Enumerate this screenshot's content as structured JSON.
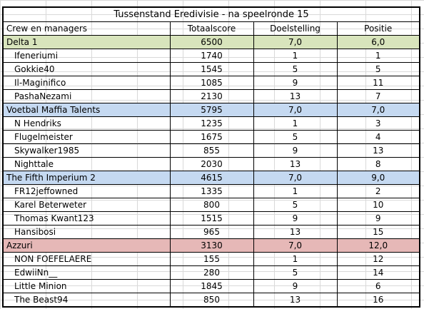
{
  "title": "Tussenstand Eredivisie - na speelronde 15",
  "headers": [
    "Crew en managers",
    "Totaalscore",
    "Doelstelling",
    "Positie"
  ],
  "colors": {
    "green": "#d8e4bc",
    "blue": "#c5d9f1",
    "red": "#e6b8b7"
  },
  "teams": [
    {
      "name": "Delta 1",
      "score": "6500",
      "doel": "7,0",
      "positie": "6,0",
      "color": "green",
      "managers": [
        {
          "name": "Ifeneriumi",
          "score": "1740",
          "doel": "1",
          "positie": "1"
        },
        {
          "name": "Gokkie40",
          "score": "1545",
          "doel": "5",
          "positie": "5"
        },
        {
          "name": "Il-Maginifico",
          "score": "1085",
          "doel": "9",
          "positie": "11"
        },
        {
          "name": "PashaNezami",
          "score": "2130",
          "doel": "13",
          "positie": "7"
        }
      ]
    },
    {
      "name": "Voetbal Maffia Talents",
      "score": "5795",
      "doel": "7,0",
      "positie": "7,0",
      "color": "blue",
      "managers": [
        {
          "name": "N Hendriks",
          "score": "1235",
          "doel": "1",
          "positie": "3"
        },
        {
          "name": "Flugelmeister",
          "score": "1675",
          "doel": "5",
          "positie": "4"
        },
        {
          "name": "Skywalker1985",
          "score": "855",
          "doel": "9",
          "positie": "13"
        },
        {
          "name": "Nighttale",
          "score": "2030",
          "doel": "13",
          "positie": "8"
        }
      ]
    },
    {
      "name": "The Fifth Imperium 2",
      "score": "4615",
      "doel": "7,0",
      "positie": "9,0",
      "color": "blue",
      "managers": [
        {
          "name": "FR12jeffowned",
          "score": "1335",
          "doel": "1",
          "positie": "2"
        },
        {
          "name": "Karel Beterweter",
          "score": "800",
          "doel": "5",
          "positie": "10"
        },
        {
          "name": "Thomas Kwant123",
          "score": "1515",
          "doel": "9",
          "positie": "9"
        },
        {
          "name": "Hansibosi",
          "score": "965",
          "doel": "13",
          "positie": "15"
        }
      ]
    },
    {
      "name": "Azzuri",
      "score": "3130",
      "doel": "7,0",
      "positie": "12,0",
      "color": "red",
      "managers": [
        {
          "name": "NON FOEFELAERE",
          "score": "155",
          "doel": "1",
          "positie": "12"
        },
        {
          "name": "EdwiiNn__",
          "score": "280",
          "doel": "5",
          "positie": "14"
        },
        {
          "name": "Little Minion",
          "score": "1845",
          "doel": "9",
          "positie": "6"
        },
        {
          "name": "The Beast94",
          "score": "850",
          "doel": "13",
          "positie": "16"
        }
      ]
    }
  ]
}
